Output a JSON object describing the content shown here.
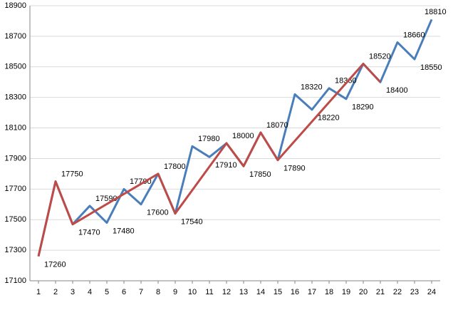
{
  "chart_data": {
    "type": "line",
    "x": [
      1,
      2,
      3,
      4,
      5,
      6,
      7,
      8,
      9,
      10,
      11,
      12,
      13,
      14,
      15,
      16,
      17,
      18,
      19,
      20,
      21,
      22,
      23,
      24
    ],
    "series": [
      {
        "color": "#4a7ebb",
        "values": [
          17260,
          17750,
          17470,
          17590,
          17480,
          17700,
          17600,
          17800,
          17540,
          17980,
          17910,
          18000,
          17850,
          18070,
          17890,
          18320,
          18220,
          18360,
          18290,
          18520,
          18400,
          18660,
          18550,
          18810
        ],
        "data_labels": true
      },
      {
        "color": "#be4b48",
        "x": [
          1,
          2,
          3,
          8,
          9,
          12,
          13,
          14,
          15,
          20,
          21
        ],
        "values": [
          17260,
          17750,
          17470,
          17800,
          17540,
          18000,
          17850,
          18070,
          17890,
          18520,
          18400
        ]
      }
    ],
    "xlim": [
      0.5,
      24.5
    ],
    "xticks": [
      1,
      2,
      3,
      4,
      5,
      6,
      7,
      8,
      9,
      10,
      11,
      12,
      13,
      14,
      15,
      16,
      17,
      18,
      19,
      20,
      21,
      22,
      23,
      24
    ],
    "ylim": [
      17100,
      18900
    ],
    "yticks": [
      17100,
      17300,
      17500,
      17700,
      17900,
      18100,
      18300,
      18500,
      18700,
      18900
    ],
    "grid": true
  }
}
